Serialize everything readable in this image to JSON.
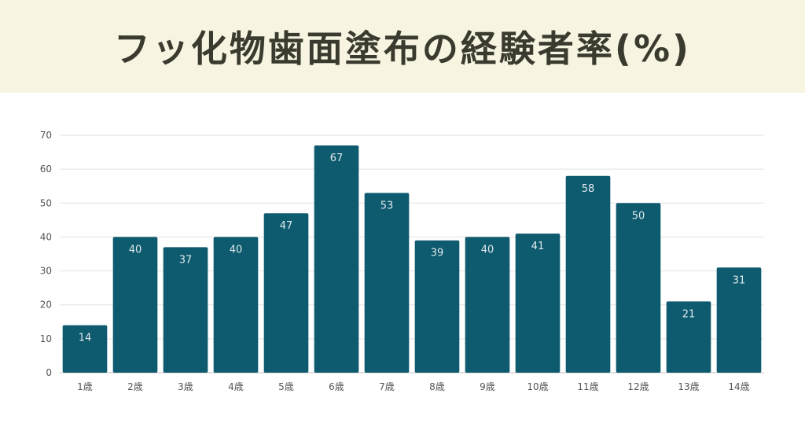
{
  "chart_data": {
    "type": "bar",
    "title": "フッ化物歯面塗布の経験者率(%)",
    "categories": [
      "1歳",
      "2歳",
      "3歳",
      "4歳",
      "5歳",
      "6歳",
      "7歳",
      "8歳",
      "9歳",
      "10歳",
      "11歳",
      "12歳",
      "13歳",
      "14歳"
    ],
    "values": [
      14,
      40,
      37,
      40,
      47,
      67,
      53,
      39,
      40,
      41,
      58,
      50,
      21,
      31
    ],
    "ylim": [
      0,
      70
    ],
    "yticks": [
      0,
      10,
      20,
      30,
      40,
      50,
      60,
      70
    ],
    "grid": true,
    "bar_color": "#0e5a6e",
    "header_bg": "#f7f4e1"
  }
}
